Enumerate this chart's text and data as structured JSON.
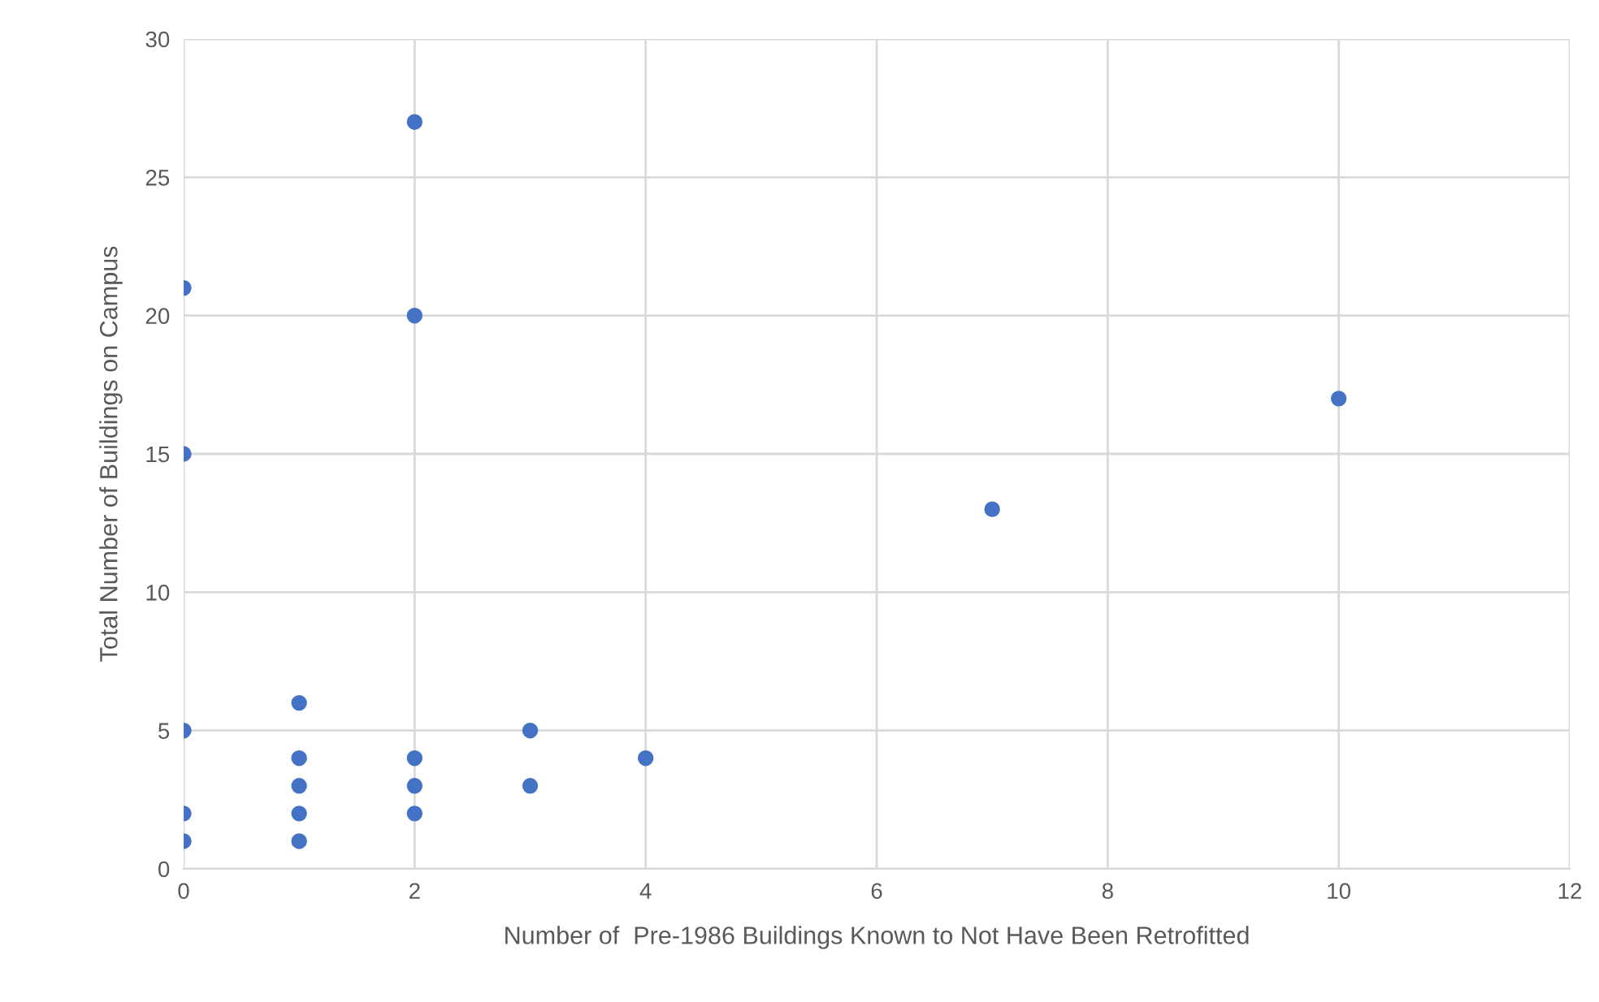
{
  "chart_data": {
    "type": "scatter",
    "xlabel": "Number of  Pre-1986 Buildings Known to Not Have Been Retrofitted",
    "ylabel": "Total Number of Buildings on Campus",
    "x": [
      0,
      0,
      0,
      0,
      0,
      1,
      1,
      1,
      1,
      1,
      2,
      2,
      2,
      2,
      2,
      3,
      3,
      4,
      7,
      10
    ],
    "values": [
      21,
      15,
      5,
      2,
      1,
      6,
      4,
      3,
      2,
      1,
      27,
      20,
      4,
      3,
      2,
      5,
      3,
      4,
      13,
      17
    ],
    "color": "#4472c4",
    "marker": "circle",
    "xlim": [
      0,
      12
    ],
    "xticks": [
      0,
      2,
      4,
      6,
      8,
      10,
      12
    ],
    "ylim": [
      0,
      30
    ],
    "yticks": [
      0,
      5,
      10,
      15,
      20,
      25,
      30
    ],
    "grid": true
  }
}
